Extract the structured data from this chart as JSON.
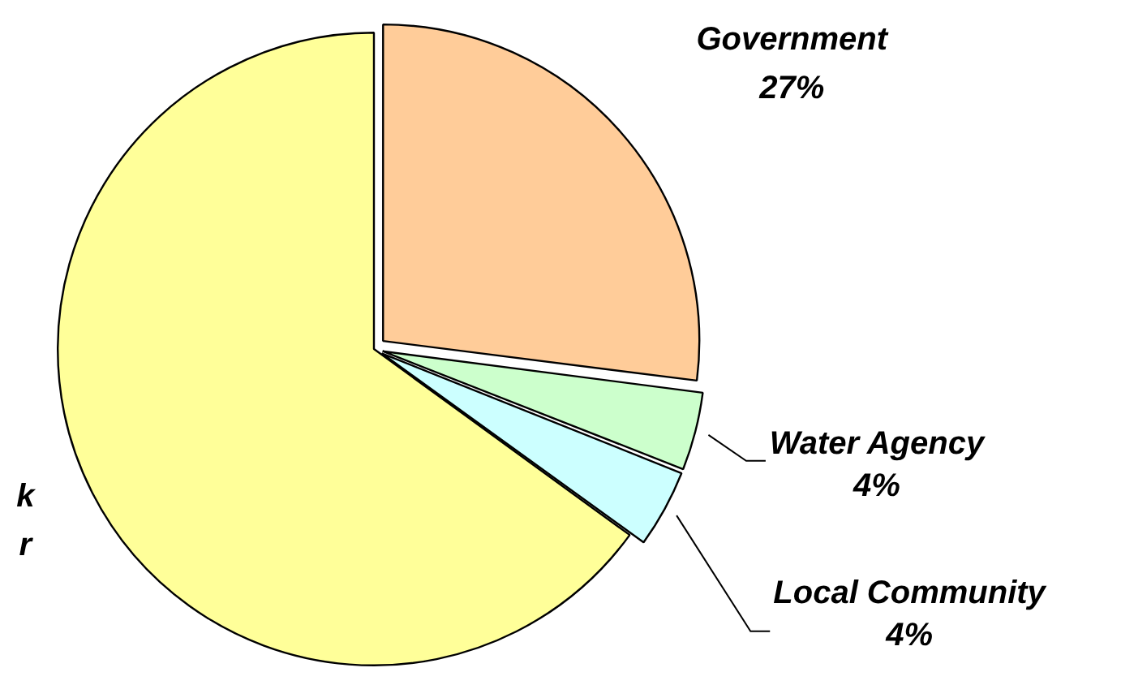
{
  "chart_data": {
    "type": "pie",
    "categories": [
      "Government",
      "Water Agency",
      "Local Community",
      "k\nr"
    ],
    "values": [
      27,
      4,
      4,
      65
    ],
    "colors": [
      "#ffcc99",
      "#ccffcc",
      "#ccffff",
      "#ffff99"
    ],
    "value_labels": [
      "27%",
      "4%",
      "4%",
      null
    ],
    "legend": false
  }
}
